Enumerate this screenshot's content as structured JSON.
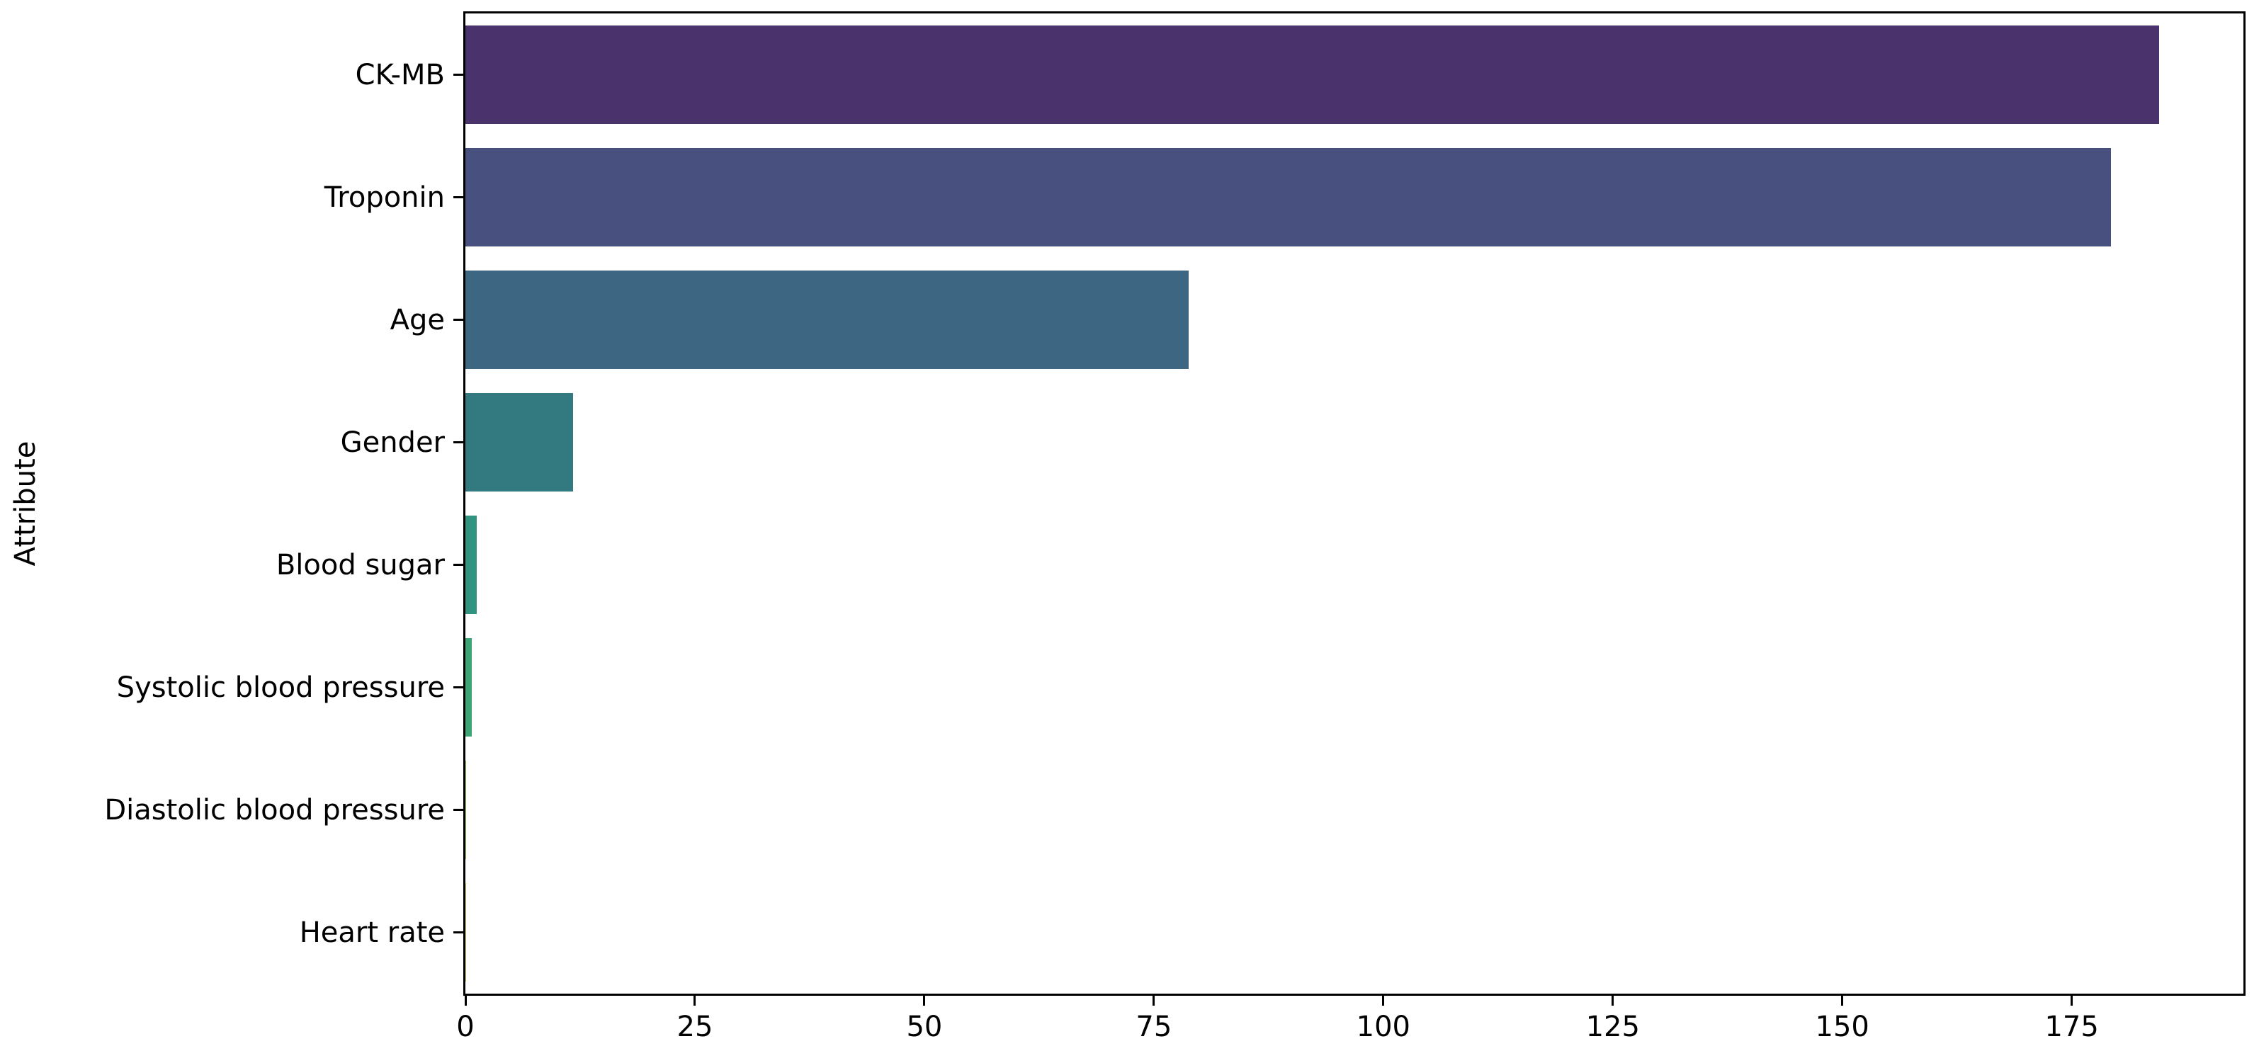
{
  "chart_data": {
    "type": "bar",
    "orientation": "horizontal",
    "title": "",
    "xlabel": "",
    "ylabel": "Attribute",
    "categories": [
      "CK-MB",
      "Troponin",
      "Age",
      "Gender",
      "Blood sugar",
      "Systolic blood pressure",
      "Diastolic blood pressure",
      "Heart rate"
    ],
    "values": [
      184.5,
      179.3,
      78.8,
      11.7,
      1.2,
      0.7,
      0.1,
      0.03
    ],
    "bar_colors": [
      "#4a326d",
      "#47507e",
      "#3d6683",
      "#327a80",
      "#319480",
      "#3da476",
      "#a5cc57",
      "#e1d858"
    ],
    "x_ticks": [
      0,
      25,
      50,
      75,
      100,
      125,
      150,
      175
    ],
    "xlim": [
      0,
      193.7
    ],
    "grid": false,
    "legend": null,
    "axis_color": "#000000",
    "text_color": "#000000",
    "background": "#ffffff"
  }
}
